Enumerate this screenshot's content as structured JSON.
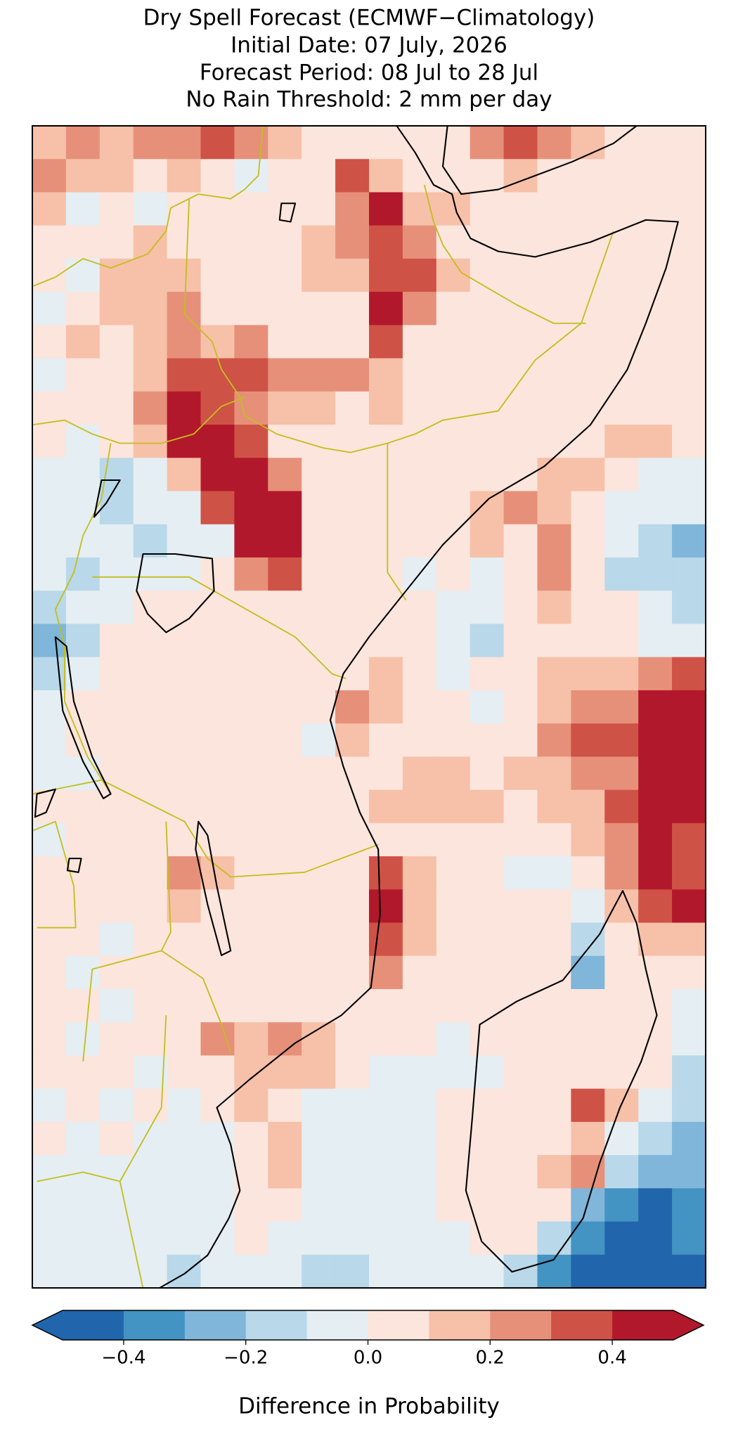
{
  "chart_data": {
    "type": "heatmap",
    "title": [
      "Dry Spell Forecast (ECMWF−Climatology)",
      "Initial Date: 07 July, 2026",
      "Forecast Period: 08 Jul to 28 Jul",
      "No Rain Threshold: 2 mm per day"
    ],
    "z": [
      [
        0.15,
        0.25,
        0.15,
        0.25,
        0.25,
        0.35,
        0.25,
        0.15,
        0.05,
        0.05,
        0.05,
        0.05,
        0.05,
        0.25,
        0.35,
        0.25,
        0.15,
        0.05,
        0.05,
        0.05
      ],
      [
        0.25,
        0.15,
        0.15,
        0.05,
        0.15,
        0.05,
        -0.05,
        0.05,
        0.05,
        0.35,
        0.15,
        0.05,
        0.05,
        0.05,
        0.15,
        0.05,
        0.05,
        0.05,
        0.05,
        0.05
      ],
      [
        0.15,
        -0.05,
        0.05,
        -0.05,
        0.05,
        0.05,
        0.05,
        0.05,
        0.05,
        0.25,
        0.45,
        0.15,
        0.15,
        0.05,
        0.05,
        0.05,
        0.05,
        0.05,
        0.05,
        0.05
      ],
      [
        0.05,
        0.05,
        0.05,
        0.15,
        0.05,
        0.05,
        0.05,
        0.05,
        0.15,
        0.25,
        0.35,
        0.25,
        0.05,
        0.05,
        0.05,
        0.05,
        0.05,
        0.05,
        0.05,
        0.05
      ],
      [
        0.05,
        -0.05,
        0.15,
        0.15,
        0.15,
        0.05,
        0.05,
        0.05,
        0.15,
        0.15,
        0.35,
        0.35,
        0.15,
        0.05,
        0.05,
        0.05,
        0.05,
        0.05,
        0.05,
        0.05
      ],
      [
        -0.05,
        0.05,
        0.15,
        0.15,
        0.25,
        0.05,
        0.05,
        0.05,
        0.05,
        0.05,
        0.45,
        0.25,
        0.05,
        0.05,
        0.05,
        0.05,
        0.05,
        0.05,
        0.05,
        0.05
      ],
      [
        0.05,
        0.15,
        0.05,
        0.15,
        0.25,
        0.15,
        0.25,
        0.05,
        0.05,
        0.05,
        0.35,
        0.05,
        0.05,
        0.05,
        0.05,
        0.05,
        0.05,
        0.05,
        0.05,
        0.05
      ],
      [
        -0.05,
        0.05,
        0.05,
        0.15,
        0.35,
        0.35,
        0.35,
        0.25,
        0.25,
        0.25,
        0.15,
        0.05,
        0.05,
        0.05,
        0.05,
        0.05,
        0.05,
        0.05,
        0.05,
        0.05
      ],
      [
        0.05,
        0.05,
        0.05,
        0.25,
        0.45,
        0.35,
        0.25,
        0.15,
        0.15,
        0.05,
        0.15,
        0.05,
        0.05,
        0.05,
        0.05,
        0.05,
        0.05,
        0.05,
        0.05,
        0.05
      ],
      [
        0.05,
        -0.05,
        0.05,
        0.15,
        0.45,
        0.45,
        0.35,
        0.05,
        0.05,
        0.05,
        0.05,
        0.05,
        0.05,
        0.05,
        0.05,
        0.05,
        0.05,
        0.15,
        0.15,
        0.05
      ],
      [
        -0.05,
        -0.05,
        -0.15,
        -0.05,
        0.15,
        0.45,
        0.45,
        0.25,
        0.05,
        0.05,
        0.05,
        0.05,
        0.05,
        0.05,
        0.05,
        0.15,
        0.15,
        0.05,
        -0.05,
        -0.05
      ],
      [
        -0.05,
        -0.05,
        -0.15,
        -0.05,
        -0.05,
        0.35,
        0.45,
        0.45,
        0.05,
        0.05,
        0.05,
        0.05,
        0.05,
        0.15,
        0.25,
        0.15,
        0.05,
        -0.05,
        -0.05,
        -0.05
      ],
      [
        -0.05,
        -0.05,
        -0.05,
        -0.15,
        -0.05,
        -0.05,
        0.45,
        0.45,
        0.05,
        0.05,
        0.05,
        0.05,
        0.05,
        0.15,
        0.05,
        0.25,
        0.05,
        -0.05,
        -0.15,
        -0.25
      ],
      [
        -0.05,
        -0.15,
        -0.05,
        -0.05,
        -0.05,
        0.05,
        0.25,
        0.35,
        0.05,
        0.05,
        0.05,
        -0.05,
        0.05,
        -0.05,
        0.05,
        0.25,
        0.05,
        -0.15,
        -0.15,
        -0.15
      ],
      [
        -0.15,
        -0.05,
        -0.05,
        0.05,
        0.05,
        0.05,
        0.05,
        0.05,
        0.05,
        0.05,
        0.05,
        0.05,
        -0.05,
        -0.05,
        0.05,
        0.15,
        0.05,
        0.05,
        -0.05,
        -0.15
      ],
      [
        -0.25,
        -0.15,
        0.05,
        0.05,
        0.05,
        0.05,
        0.05,
        0.05,
        0.05,
        0.05,
        0.05,
        0.05,
        -0.05,
        -0.15,
        0.05,
        0.05,
        0.05,
        0.05,
        -0.05,
        -0.05
      ],
      [
        -0.15,
        -0.05,
        0.05,
        0.05,
        0.05,
        0.05,
        0.05,
        0.05,
        0.05,
        0.05,
        0.15,
        0.05,
        -0.05,
        0.05,
        0.05,
        0.15,
        0.15,
        0.15,
        0.25,
        0.35
      ],
      [
        -0.05,
        0.05,
        0.05,
        0.05,
        0.05,
        0.05,
        0.05,
        0.05,
        0.05,
        0.25,
        0.15,
        0.05,
        0.05,
        -0.05,
        0.05,
        0.15,
        0.25,
        0.25,
        0.45,
        0.45
      ],
      [
        -0.05,
        0.05,
        0.05,
        0.05,
        0.05,
        0.05,
        0.05,
        0.05,
        -0.05,
        0.15,
        0.05,
        0.05,
        0.05,
        0.05,
        0.05,
        0.25,
        0.35,
        0.35,
        0.45,
        0.45
      ],
      [
        -0.05,
        -0.05,
        0.05,
        0.05,
        0.05,
        0.05,
        0.05,
        0.05,
        0.05,
        0.05,
        0.05,
        0.15,
        0.15,
        0.05,
        0.15,
        0.15,
        0.25,
        0.25,
        0.45,
        0.45
      ],
      [
        0.05,
        0.05,
        0.05,
        0.05,
        0.05,
        0.05,
        0.05,
        0.05,
        0.05,
        0.05,
        0.15,
        0.15,
        0.15,
        0.15,
        0.05,
        0.15,
        0.15,
        0.35,
        0.45,
        0.45
      ],
      [
        -0.05,
        0.05,
        0.05,
        0.05,
        0.05,
        0.05,
        0.05,
        0.05,
        0.05,
        0.05,
        0.05,
        0.05,
        0.05,
        0.05,
        0.05,
        0.05,
        0.15,
        0.25,
        0.45,
        0.35
      ],
      [
        0.05,
        0.05,
        0.05,
        0.05,
        0.25,
        0.15,
        0.05,
        0.05,
        0.05,
        0.05,
        0.35,
        0.15,
        0.05,
        0.05,
        -0.05,
        -0.05,
        0.05,
        0.25,
        0.45,
        0.35
      ],
      [
        0.05,
        0.05,
        0.05,
        0.05,
        0.15,
        0.05,
        0.05,
        0.05,
        0.05,
        0.05,
        0.45,
        0.15,
        0.05,
        0.05,
        0.05,
        0.05,
        -0.05,
        0.15,
        0.35,
        0.45
      ],
      [
        0.05,
        0.05,
        -0.05,
        0.05,
        0.05,
        0.05,
        0.05,
        0.05,
        0.05,
        0.05,
        0.35,
        0.15,
        0.05,
        0.05,
        0.05,
        0.05,
        -0.15,
        0.05,
        0.15,
        0.15
      ],
      [
        0.05,
        -0.05,
        0.05,
        0.05,
        0.05,
        0.05,
        0.05,
        0.05,
        0.05,
        0.05,
        0.25,
        0.05,
        0.05,
        0.05,
        0.05,
        0.05,
        -0.25,
        0.05,
        0.05,
        0.05
      ],
      [
        0.05,
        0.05,
        -0.05,
        0.05,
        0.05,
        0.05,
        0.05,
        0.05,
        0.05,
        0.05,
        0.05,
        0.05,
        0.05,
        0.05,
        0.05,
        0.05,
        0.05,
        0.05,
        0.05,
        -0.05
      ],
      [
        0.05,
        -0.05,
        0.05,
        0.05,
        0.05,
        0.25,
        0.15,
        0.25,
        0.15,
        0.05,
        0.05,
        0.05,
        -0.05,
        0.05,
        0.05,
        0.05,
        0.05,
        0.05,
        0.05,
        -0.05
      ],
      [
        0.05,
        0.05,
        0.05,
        -0.05,
        0.05,
        0.05,
        0.15,
        0.15,
        0.15,
        0.05,
        -0.05,
        -0.05,
        -0.05,
        -0.05,
        0.05,
        0.05,
        0.05,
        0.05,
        0.05,
        -0.15
      ],
      [
        -0.05,
        0.05,
        -0.05,
        0.05,
        -0.05,
        0.05,
        0.15,
        0.05,
        -0.05,
        -0.05,
        -0.05,
        -0.05,
        0.05,
        0.05,
        0.05,
        0.05,
        0.35,
        0.15,
        -0.05,
        -0.15
      ],
      [
        0.05,
        -0.05,
        0.05,
        -0.05,
        -0.05,
        -0.05,
        0.05,
        0.15,
        -0.05,
        -0.05,
        -0.05,
        -0.05,
        0.05,
        0.05,
        0.05,
        0.05,
        0.15,
        -0.05,
        -0.15,
        -0.25
      ],
      [
        -0.05,
        -0.05,
        -0.05,
        -0.05,
        -0.05,
        -0.05,
        0.05,
        0.15,
        -0.05,
        -0.05,
        -0.05,
        -0.05,
        0.05,
        0.05,
        0.05,
        0.15,
        0.25,
        -0.15,
        -0.25,
        -0.25
      ],
      [
        -0.05,
        -0.05,
        -0.05,
        -0.05,
        -0.05,
        -0.05,
        0.05,
        0.05,
        -0.05,
        -0.05,
        -0.05,
        -0.05,
        0.05,
        0.05,
        0.05,
        0.05,
        -0.25,
        -0.35,
        -0.45,
        -0.35
      ],
      [
        -0.05,
        -0.05,
        -0.05,
        -0.05,
        -0.05,
        -0.05,
        0.05,
        -0.05,
        -0.05,
        -0.05,
        -0.05,
        -0.05,
        -0.05,
        0.05,
        0.05,
        -0.15,
        -0.35,
        -0.45,
        -0.45,
        -0.35
      ],
      [
        -0.05,
        -0.05,
        -0.05,
        -0.05,
        -0.15,
        -0.05,
        -0.05,
        -0.05,
        -0.15,
        -0.15,
        -0.05,
        -0.05,
        -0.05,
        -0.05,
        -0.15,
        -0.35,
        -0.45,
        -0.45,
        -0.45,
        -0.45
      ]
    ],
    "colorbar": {
      "label": "Difference in Probability",
      "levels": [
        -0.5,
        -0.4,
        -0.3,
        -0.2,
        -0.1,
        0.0,
        0.1,
        0.2,
        0.3,
        0.4,
        0.5
      ],
      "colors": [
        "#2166ac",
        "#4393c3",
        "#7fb6d9",
        "#b9d8e9",
        "#e5eef3",
        "#fbe5dc",
        "#f7c0a8",
        "#e6907a",
        "#cf5246",
        "#b2182b"
      ],
      "extend": "both",
      "ticks": [
        {
          "value": -0.4,
          "label": "−0.4"
        },
        {
          "value": -0.2,
          "label": "−0.2"
        },
        {
          "value": 0.0,
          "label": "0.0"
        },
        0.2,
        0.4
      ]
    }
  }
}
